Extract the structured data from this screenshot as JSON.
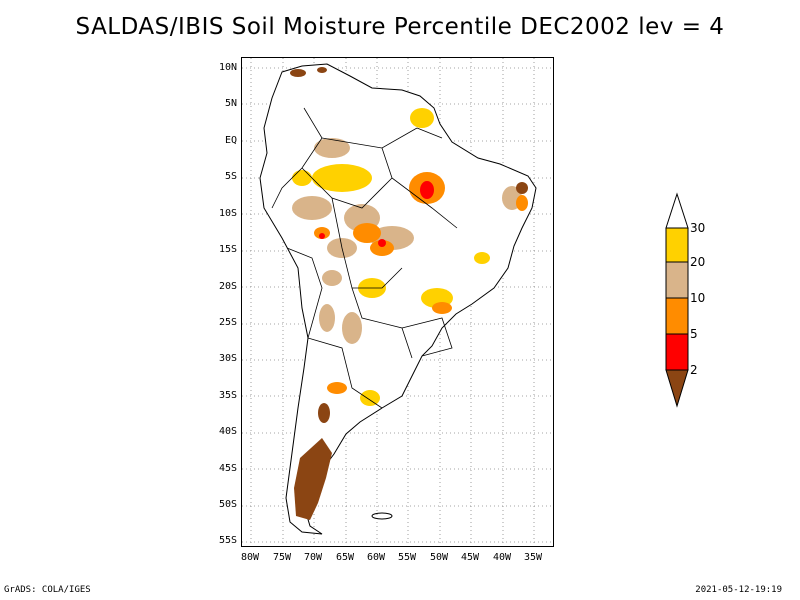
{
  "title": "SALDAS/IBIS Soil Moisture Percentile DEC2002 lev = 4",
  "map": {
    "lat_labels": [
      "10N",
      "5N",
      "EQ",
      "5S",
      "10S",
      "15S",
      "20S",
      "25S",
      "30S",
      "35S",
      "40S",
      "45S",
      "50S",
      "55S"
    ],
    "lon_labels": [
      "80W",
      "75W",
      "70W",
      "65W",
      "60W",
      "55W",
      "50W",
      "45W",
      "40W",
      "35W"
    ],
    "grid": "dotted"
  },
  "legend": {
    "labels": [
      "30",
      "20",
      "10",
      "5",
      "2"
    ],
    "colors": {
      "above_30": "#ffffff",
      "20_30": "#ffd100",
      "10_20": "#d9b48a",
      "5_10": "#ff8c00",
      "2_5": "#ff0000",
      "below_2": "#8b4513"
    }
  },
  "footer": {
    "left": "GrADS: COLA/IGES",
    "right": "2021-05-12-19:19"
  }
}
